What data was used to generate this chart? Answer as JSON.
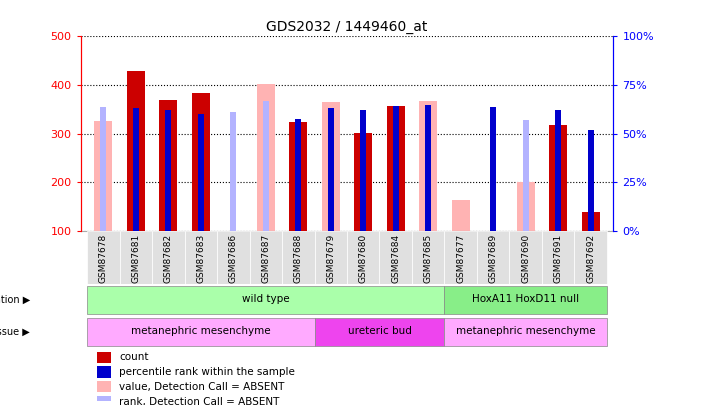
{
  "title": "GDS2032 / 1449460_at",
  "samples": [
    "GSM87678",
    "GSM87681",
    "GSM87682",
    "GSM87683",
    "GSM87686",
    "GSM87687",
    "GSM87688",
    "GSM87679",
    "GSM87680",
    "GSM87684",
    "GSM87685",
    "GSM87677",
    "GSM87689",
    "GSM87690",
    "GSM87691",
    "GSM87692"
  ],
  "count": [
    null,
    430,
    370,
    384,
    null,
    null,
    325,
    null,
    302,
    358,
    null,
    null,
    null,
    null,
    318,
    140
  ],
  "count_absent": [
    327,
    null,
    null,
    null,
    null,
    402,
    null,
    365,
    null,
    null,
    367,
    163,
    null,
    200,
    null,
    null
  ],
  "percentile_rank": [
    null,
    352,
    348,
    340,
    null,
    null,
    330,
    353,
    348,
    357,
    360,
    null,
    354,
    null,
    349,
    308
  ],
  "percentile_rank_absent": [
    355,
    null,
    null,
    null,
    345,
    368,
    null,
    null,
    null,
    null,
    null,
    null,
    null,
    329,
    null,
    null
  ],
  "ylim": [
    100,
    500
  ],
  "yticks": [
    100,
    200,
    300,
    400,
    500
  ],
  "right_yticks": [
    0,
    25,
    50,
    75,
    100
  ],
  "count_color": "#cc0000",
  "count_absent_color": "#ffb3b3",
  "rank_color": "#0000cc",
  "rank_absent_color": "#b3b3ff",
  "geno_groups": [
    {
      "label": "wild type",
      "start": 0,
      "end": 10,
      "color": "#aaffaa"
    },
    {
      "label": "HoxA11 HoxD11 null",
      "start": 11,
      "end": 15,
      "color": "#88ee88"
    }
  ],
  "tissue_groups": [
    {
      "label": "metanephric mesenchyme",
      "start": 0,
      "end": 6,
      "color": "#ffaaff"
    },
    {
      "label": "ureteric bud",
      "start": 7,
      "end": 10,
      "color": "#ee44ee"
    },
    {
      "label": "metanephric mesenchyme",
      "start": 11,
      "end": 15,
      "color": "#ffaaff"
    }
  ],
  "legend_items": [
    {
      "label": "count",
      "color": "#cc0000"
    },
    {
      "label": "percentile rank within the sample",
      "color": "#0000cc"
    },
    {
      "label": "value, Detection Call = ABSENT",
      "color": "#ffb3b3"
    },
    {
      "label": "rank, Detection Call = ABSENT",
      "color": "#b3b3ff"
    }
  ]
}
